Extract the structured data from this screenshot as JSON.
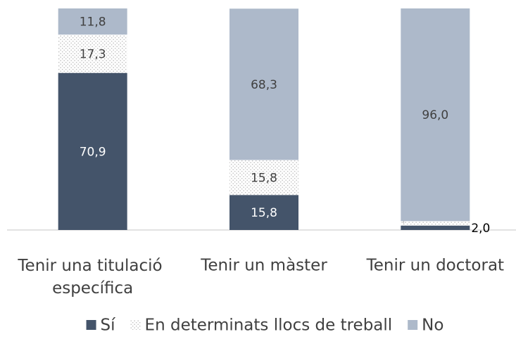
{
  "chart_data": {
    "type": "bar",
    "stacked": true,
    "categories": [
      "Tenir una titulació específica",
      "Tenir un màster",
      "Tenir un doctorat"
    ],
    "series": [
      {
        "name": "Sí",
        "color": "#44546a",
        "values": [
          70.9,
          15.8,
          2.0
        ],
        "value_labels": [
          "70,9",
          "15,8",
          "2,0"
        ]
      },
      {
        "name": "En determinats llocs de treball",
        "color": "#bfbfbf",
        "pattern": "dots",
        "values": [
          17.3,
          15.8,
          2.0
        ],
        "value_labels": [
          "17,3",
          "15,8",
          "2,0"
        ]
      },
      {
        "name": "No",
        "color": "#adb9ca",
        "values": [
          11.8,
          68.3,
          96.0
        ],
        "value_labels": [
          "11,8",
          "68,3",
          "96,0"
        ]
      }
    ],
    "ylim": [
      0,
      100
    ],
    "legend": "bottom"
  }
}
